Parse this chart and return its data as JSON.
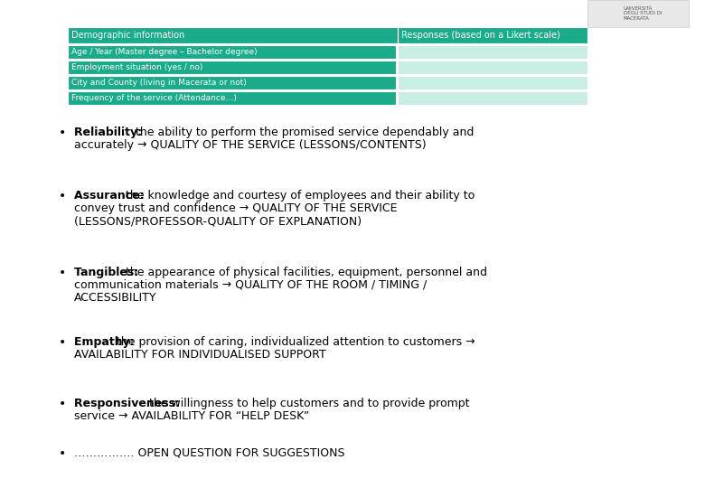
{
  "bg_color": "#ffffff",
  "table": {
    "header_row": {
      "col1": "Demographic information",
      "col2": "Responses (based on a Likert scale)",
      "bg": "#1aab8a",
      "text_color": "#ffffff",
      "fontsize": 7
    },
    "data_rows": [
      "Age / Year (Master degree – Bachelor degree)",
      "Employment situation (yes / no)",
      "City and County (living in Macerata or not)",
      "Frequency of the service (Attendance…)"
    ],
    "row_bg": "#1aab8a",
    "response_bg": "#c8ede4",
    "text_color": "#ffffff",
    "fontsize": 6.5
  },
  "bullets": [
    {
      "bold_part": "Reliability: ",
      "rest": "the ability to perform the promised service dependably and accurately → QUALITY OF THE SERVICE (LESSONS/CONTENTS)"
    },
    {
      "bold_part": "Assurance: ",
      "rest": "the knowledge and courtesy of employees and their ability to convey trust and confidence → QUALITY OF THE SERVICE (LESSONS/PROFESSOR-QUALITY OF EXPLANATION)"
    },
    {
      "bold_part": "Tangibles: ",
      "rest": "the appearance of physical facilities, equipment, personnel and communication materials → QUALITY OF THE ROOM / TIMING / ACCESSIBILITY"
    },
    {
      "bold_part": "Empathy: ",
      "rest": "the provision of caring, individualized attention to customers → AVAILABILITY FOR INDIVIDUALISED SUPPORT"
    },
    {
      "bold_part": "Responsiveness: ",
      "rest": "the willingness to help customers and to provide prompt service → AVAILABILITY FOR “HELP DESK”"
    },
    {
      "bold_part": "",
      "rest": "……………. OPEN QUESTION FOR SUGGESTIONS"
    }
  ],
  "bullet_fontsize": 9.0,
  "bullet_color": "#000000",
  "logo_text": "UNIVERSITÀ\nDEGLI STUDI DI\nMACERATA",
  "logo_fontsize": 4.0,
  "logo_color": "#555555"
}
